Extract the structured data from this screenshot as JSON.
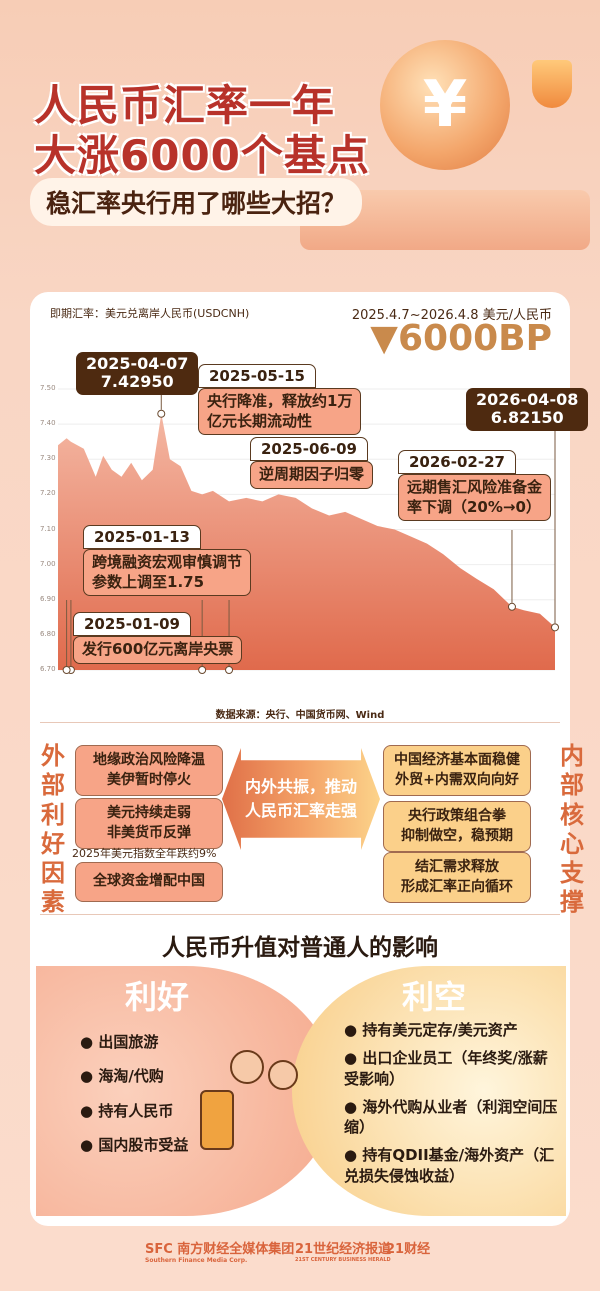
{
  "header": {
    "title_line1": "人民币汇率一年",
    "title_line2": "大涨6000个基点",
    "subtitle": "稳汇率央行用了哪些大招？",
    "coin_symbol": "¥"
  },
  "chart_header": {
    "left": "即期汇率：美元兑离岸人民币(USDCNH)",
    "range": "2025.4.7~2026.4.8  美元/人民币",
    "change": "▼6000BP"
  },
  "chart_data": {
    "type": "area",
    "title": "即期汇率：美元兑离岸人民币(USDCNH)",
    "unit": "美元/人民币",
    "ylim": [
      6.7,
      7.5
    ],
    "yticks": [
      "6.70",
      "6.80",
      "6.90",
      "7.00",
      "7.10",
      "7.20",
      "7.30",
      "7.40",
      "7.50"
    ],
    "grid": true,
    "colors": {
      "area_top": "#f4b7a3",
      "area_bottom": "#e06a4c"
    },
    "x": [
      "2025-01-01",
      "2025-01-09",
      "2025-01-13",
      "2025-01-25",
      "2025-02-05",
      "2025-02-12",
      "2025-02-20",
      "2025-03-01",
      "2025-03-10",
      "2025-03-20",
      "2025-03-30",
      "2025-04-07",
      "2025-04-15",
      "2025-04-25",
      "2025-05-05",
      "2025-05-15",
      "2025-05-25",
      "2025-06-09",
      "2025-06-25",
      "2025-07-10",
      "2025-07-25",
      "2025-08-10",
      "2025-08-25",
      "2025-09-10",
      "2025-09-25",
      "2025-10-10",
      "2025-10-25",
      "2025-11-10",
      "2025-11-25",
      "2025-12-10",
      "2025-12-25",
      "2026-01-10",
      "2026-01-25",
      "2026-02-10",
      "2026-02-27",
      "2026-03-10",
      "2026-03-25",
      "2026-04-08"
    ],
    "values": [
      7.34,
      7.36,
      7.35,
      7.33,
      7.25,
      7.31,
      7.27,
      7.25,
      7.29,
      7.24,
      7.27,
      7.4295,
      7.3,
      7.28,
      7.21,
      7.2,
      7.21,
      7.18,
      7.19,
      7.18,
      7.2,
      7.19,
      7.16,
      7.14,
      7.15,
      7.13,
      7.11,
      7.1,
      7.08,
      7.06,
      7.03,
      6.99,
      6.96,
      6.93,
      6.88,
      6.87,
      6.86,
      6.8215
    ],
    "annotations": [
      {
        "date": "2025-04-07",
        "text": "7.42950"
      },
      {
        "date": "2025-05-15",
        "text": "央行降准，释放约1万亿元长期流动性"
      },
      {
        "date": "2025-06-09",
        "text": "逆周期因子归零"
      },
      {
        "date": "2026-02-27",
        "text": "远期售汇风险准备金率下调（20%→0）"
      },
      {
        "date": "2026-04-08",
        "text": "6.82150"
      },
      {
        "date": "2025-01-13",
        "text": "跨境融资宏观审慎调节参数上调至1.75"
      },
      {
        "date": "2025-01-09",
        "text": "发行600亿元离岸央票"
      }
    ],
    "source": "数据来源：央行、中国货币网、Wind"
  },
  "ann": {
    "a0407": {
      "date": "2025-04-07",
      "value": "7.42950"
    },
    "a0515": {
      "date": "2025-05-15",
      "l1": "央行降准，释放约1万",
      "l2": "亿元长期流动性"
    },
    "a0609": {
      "date": "2025-06-09",
      "l1": "逆周期因子归零"
    },
    "a0227": {
      "date": "2026-02-27",
      "l1": "远期售汇风险准备金",
      "l2": "率下调（20%→0）"
    },
    "a0408": {
      "date": "2026-04-08",
      "value": "6.82150"
    },
    "a0113": {
      "date": "2025-01-13",
      "l1": "跨境融资宏观审慎调节",
      "l2": "参数上调至1.75"
    },
    "a0109": {
      "date": "2025-01-09",
      "l1": "发行600亿元离岸央票"
    }
  },
  "factors": {
    "external_label": "外部利好因素",
    "internal_label": "内部核心支撑",
    "center": {
      "l1": "内外共振，推动",
      "l2": "人民币汇率走强"
    },
    "external": [
      {
        "l1": "地缘政治风险降温",
        "l2": "美伊暂时停火"
      },
      {
        "l1": "美元持续走弱",
        "l2": "非美货币反弹"
      },
      {
        "l1": "全球资金增配中国",
        "l2": ""
      }
    ],
    "external_note": "2025年美元指数全年跌约9%",
    "internal": [
      {
        "l1": "中国经济基本面稳健",
        "l2": "外贸+内需双向向好"
      },
      {
        "l1": "央行政策组合拳",
        "l2": "抑制做空，稳预期"
      },
      {
        "l1": "结汇需求释放",
        "l2": "形成汇率正向循环"
      }
    ]
  },
  "impact": {
    "title": "人民币升值对普通人的影响",
    "good_label": "利好",
    "good": [
      "出国旅游",
      "海淘/代购",
      "持有人民币",
      "国内股市受益"
    ],
    "bad_label": "利空",
    "bad": [
      "持有美元定存/美元资产",
      "出口企业员工（年终奖/涨薪受影响）",
      "海外代购从业者（利润空间压缩）",
      "持有QDII基金/海外资产（汇兑损失侵蚀收益）"
    ]
  },
  "footer": {
    "logo1": "SFC 南方财经全媒体集团",
    "logo1_en": "Southern Finance Media Corp.",
    "logo2": "21世纪经济报道",
    "logo2_en": "21ST CENTURY BUSINESS HERALD",
    "logo3": "21财经"
  }
}
